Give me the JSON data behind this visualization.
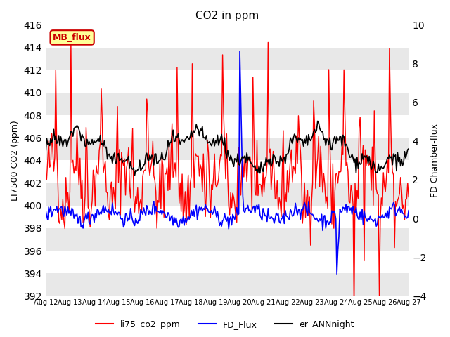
{
  "title": "CO2 in ppm",
  "ylabel_left": "LI7500 CO2 (ppm)",
  "ylabel_right": "FD Chamber-flux",
  "ylim_left": [
    392,
    416
  ],
  "ylim_right": [
    -4,
    10
  ],
  "yticks_left": [
    392,
    394,
    396,
    398,
    400,
    402,
    404,
    406,
    408,
    410,
    412,
    414,
    416
  ],
  "yticks_right": [
    -4,
    -2,
    0,
    2,
    4,
    6,
    8,
    10
  ],
  "x_labels": [
    "Aug 12",
    "Aug 13",
    "Aug 14",
    "Aug 15",
    "Aug 16",
    "Aug 17",
    "Aug 18",
    "Aug 19",
    "Aug 20",
    "Aug 21",
    "Aug 22",
    "Aug 23",
    "Aug 24",
    "Aug 25",
    "Aug 26",
    "Aug 27"
  ],
  "color_li75": "#ff0000",
  "color_fd": "#0000ff",
  "color_ann": "#000000",
  "color_mb_flux_bg": "#ffff99",
  "color_mb_flux_text": "#cc0000",
  "color_mb_flux_border": "#cc0000",
  "legend_labels": [
    "li75_co2_ppm",
    "FD_Flux",
    "er_ANNnight"
  ],
  "background_stripe_color": "#e8e8e8",
  "linewidth_li75": 1.0,
  "linewidth_fd": 1.2,
  "linewidth_ann": 1.2
}
